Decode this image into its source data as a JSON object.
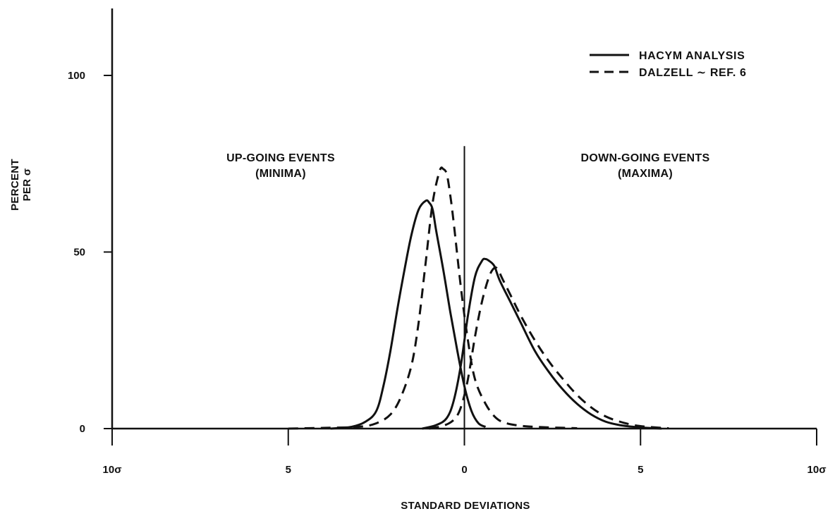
{
  "chart_data": {
    "type": "line",
    "title": "",
    "xlabel": "STANDARD DEVIATIONS",
    "ylabel": [
      "PERCENT",
      "PER σ"
    ],
    "xlim": [
      -10,
      10
    ],
    "ylim": [
      0,
      120
    ],
    "x_ticks": [
      {
        "value": -10,
        "label": "10σ"
      },
      {
        "value": -5,
        "label": "5"
      },
      {
        "value": 0,
        "label": "0"
      },
      {
        "value": 5,
        "label": "5"
      },
      {
        "value": 10,
        "label": "10σ"
      }
    ],
    "y_ticks": [
      {
        "value": 0,
        "label": "0"
      },
      {
        "value": 50,
        "label": "50"
      },
      {
        "value": 100,
        "label": "100"
      }
    ],
    "grid": false,
    "center_line": {
      "x": 0,
      "y_top": 80
    },
    "legend": {
      "position": "top-right",
      "entries": [
        {
          "label": "HACYM ANALYSIS",
          "style": "solid"
        },
        {
          "label": "DALZELL ∼ REF. 6",
          "style": "dashed"
        }
      ]
    },
    "annotations": {
      "left": [
        "UP-GOING EVENTS",
        "(MINIMA)"
      ],
      "right": [
        "DOWN-GOING EVENTS",
        "(MAXIMA)"
      ]
    },
    "series": [
      {
        "legend": "HACYM ANALYSIS",
        "style": "solid",
        "region": "minima",
        "x": [
          -3.8,
          -3.2,
          -2.8,
          -2.5,
          -2.3,
          -2.1,
          -1.9,
          -1.7,
          -1.5,
          -1.3,
          -1.1,
          -1.0,
          -0.9,
          -0.8,
          -0.6,
          -0.4,
          -0.2,
          0.0,
          0.2,
          0.4,
          0.6
        ],
        "y": [
          0,
          0.5,
          2,
          5,
          12,
          22,
          34,
          45,
          55,
          62,
          64.5,
          64,
          62,
          56,
          45,
          33,
          22,
          12,
          5,
          1.5,
          0.5
        ]
      },
      {
        "legend": "DALZELL ∼ REF. 6",
        "style": "dashed",
        "region": "minima",
        "x": [
          -5.0,
          -4.0,
          -3.0,
          -2.5,
          -2.1,
          -1.8,
          -1.5,
          -1.3,
          -1.1,
          -0.9,
          -0.7,
          -0.6,
          -0.5,
          -0.4,
          -0.3,
          -0.1,
          0.1,
          0.3,
          0.6,
          0.9,
          1.2,
          1.6,
          2.0,
          2.5,
          3.2
        ],
        "y": [
          0,
          0.2,
          0.5,
          1.5,
          4,
          9,
          18,
          30,
          47,
          64,
          73,
          73.5,
          72,
          66,
          58,
          40,
          25,
          14,
          7,
          3,
          1.5,
          0.8,
          0.5,
          0.3,
          0.1
        ]
      },
      {
        "legend": "HACYM ANALYSIS",
        "style": "solid",
        "region": "maxima",
        "x": [
          -1.2,
          -0.8,
          -0.5,
          -0.3,
          -0.1,
          0.1,
          0.3,
          0.5,
          0.6,
          0.7,
          0.85,
          1.0,
          1.3,
          1.6,
          2.0,
          2.4,
          2.8,
          3.2,
          3.6,
          4.0,
          4.4,
          4.8,
          5.2,
          5.6
        ],
        "y": [
          0,
          1,
          3,
          8,
          18,
          32,
          43,
          47.5,
          48,
          47.5,
          46,
          42,
          36,
          30,
          22,
          16,
          11,
          7,
          4,
          2,
          1,
          0.5,
          0.2,
          0
        ]
      },
      {
        "legend": "DALZELL ∼ REF. 6",
        "style": "dashed",
        "region": "maxima",
        "x": [
          -1.0,
          -0.6,
          -0.3,
          -0.1,
          0.1,
          0.3,
          0.5,
          0.7,
          0.85,
          0.95,
          1.1,
          1.3,
          1.6,
          2.0,
          2.4,
          2.8,
          3.2,
          3.6,
          4.0,
          4.4,
          4.8,
          5.2,
          5.8
        ],
        "y": [
          0,
          0.8,
          2.5,
          6,
          14,
          26,
          36,
          43,
          45.5,
          45,
          42,
          38,
          32,
          25,
          19,
          14,
          9.5,
          6,
          3.5,
          2,
          1,
          0.5,
          0.1
        ]
      }
    ]
  }
}
